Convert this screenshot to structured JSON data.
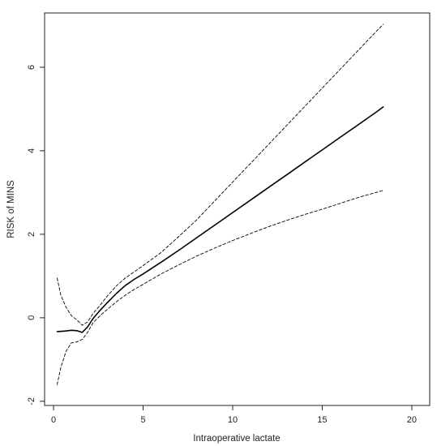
{
  "chart_data": {
    "type": "line",
    "title": "",
    "xlabel": "Intraoperative lactate",
    "ylabel": "RISK of MINS",
    "xlim": [
      -0.5,
      21
    ],
    "ylim": [
      -2.1,
      7.3
    ],
    "xticks": [
      0,
      5,
      10,
      15,
      20
    ],
    "yticks": [
      -2,
      0,
      2,
      4,
      6
    ],
    "grid": false,
    "legend": "none",
    "series": [
      {
        "style": "solid",
        "color": "#000000",
        "points": [
          [
            0.2,
            -0.33
          ],
          [
            0.6,
            -0.32
          ],
          [
            1.0,
            -0.3
          ],
          [
            1.3,
            -0.31
          ],
          [
            1.6,
            -0.35
          ],
          [
            1.9,
            -0.22
          ],
          [
            2.2,
            -0.02
          ],
          [
            2.6,
            0.18
          ],
          [
            3.0,
            0.36
          ],
          [
            3.5,
            0.58
          ],
          [
            4.0,
            0.77
          ],
          [
            4.5,
            0.92
          ],
          [
            5.0,
            1.05
          ],
          [
            6.0,
            1.33
          ],
          [
            7.0,
            1.62
          ],
          [
            8.0,
            1.92
          ],
          [
            9.0,
            2.22
          ],
          [
            10.0,
            2.52
          ],
          [
            11.0,
            2.82
          ],
          [
            12.0,
            3.12
          ],
          [
            13.0,
            3.42
          ],
          [
            14.0,
            3.72
          ],
          [
            15.0,
            4.02
          ],
          [
            16.0,
            4.32
          ],
          [
            17.0,
            4.62
          ],
          [
            18.0,
            4.92
          ],
          [
            18.4,
            5.05
          ]
        ]
      },
      {
        "style": "dashed",
        "color": "#000000",
        "points": [
          [
            0.2,
            0.95
          ],
          [
            0.4,
            0.55
          ],
          [
            0.7,
            0.25
          ],
          [
            1.0,
            0.05
          ],
          [
            1.3,
            -0.05
          ],
          [
            1.6,
            -0.18
          ],
          [
            1.9,
            -0.1
          ],
          [
            2.2,
            0.1
          ],
          [
            2.6,
            0.3
          ],
          [
            3.0,
            0.52
          ],
          [
            3.5,
            0.76
          ],
          [
            4.0,
            0.95
          ],
          [
            4.5,
            1.1
          ],
          [
            5.0,
            1.25
          ],
          [
            6.0,
            1.56
          ],
          [
            7.0,
            1.95
          ],
          [
            8.0,
            2.35
          ],
          [
            9.0,
            2.8
          ],
          [
            10.0,
            3.25
          ],
          [
            11.0,
            3.7
          ],
          [
            12.0,
            4.15
          ],
          [
            13.0,
            4.6
          ],
          [
            14.0,
            5.05
          ],
          [
            15.0,
            5.5
          ],
          [
            16.0,
            5.95
          ],
          [
            17.0,
            6.4
          ],
          [
            18.0,
            6.85
          ],
          [
            18.4,
            7.03
          ]
        ]
      },
      {
        "style": "dashed",
        "color": "#000000",
        "points": [
          [
            0.2,
            -1.6
          ],
          [
            0.4,
            -1.2
          ],
          [
            0.7,
            -0.8
          ],
          [
            1.0,
            -0.6
          ],
          [
            1.3,
            -0.58
          ],
          [
            1.6,
            -0.52
          ],
          [
            1.9,
            -0.35
          ],
          [
            2.2,
            -0.12
          ],
          [
            2.6,
            0.05
          ],
          [
            3.0,
            0.2
          ],
          [
            3.5,
            0.38
          ],
          [
            4.0,
            0.54
          ],
          [
            4.5,
            0.68
          ],
          [
            5.0,
            0.8
          ],
          [
            6.0,
            1.05
          ],
          [
            7.0,
            1.27
          ],
          [
            8.0,
            1.48
          ],
          [
            9.0,
            1.67
          ],
          [
            10.0,
            1.85
          ],
          [
            11.0,
            2.02
          ],
          [
            12.0,
            2.18
          ],
          [
            13.0,
            2.33
          ],
          [
            14.0,
            2.47
          ],
          [
            15.0,
            2.6
          ],
          [
            16.0,
            2.74
          ],
          [
            17.0,
            2.88
          ],
          [
            18.0,
            3.0
          ],
          [
            18.4,
            3.05
          ]
        ]
      }
    ]
  }
}
